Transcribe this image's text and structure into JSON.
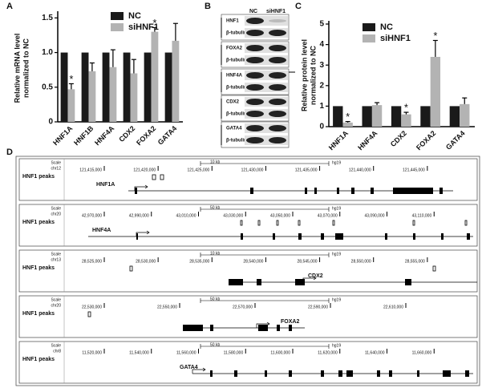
{
  "chart_data": [
    {
      "type": "bar",
      "ylabel": [
        "Relative mRNA level",
        "normalized to NC"
      ],
      "categories": [
        "HNF1A",
        "HNF1B",
        "HNF4A",
        "CDX2",
        "FOXA2",
        "GATA4"
      ],
      "series": [
        {
          "name": "NC",
          "color": "#1a1a1a",
          "values": [
            1,
            1,
            1,
            1,
            1,
            1
          ]
        },
        {
          "name": "siHNF1",
          "color": "#b3b3b3",
          "values": [
            0.47,
            0.73,
            0.79,
            0.7,
            1.3,
            1.17
          ],
          "errors": [
            0.08,
            0.12,
            0.25,
            0.2,
            0.06,
            0.25
          ]
        }
      ],
      "significance": [
        "*",
        null,
        null,
        null,
        "*",
        null
      ],
      "ylim": [
        0,
        1.55
      ],
      "yticks": [
        0,
        0.5,
        {
          "value": 1,
          "label": "1.0"
        },
        1.5
      ]
    },
    {
      "type": "bar",
      "ylabel": [
        "Relative protein level",
        "normalized to NC"
      ],
      "categories": [
        "HNF1A",
        "HNF4A",
        "CDX2",
        "FOXA2",
        "GATA4"
      ],
      "series": [
        {
          "name": "NC",
          "color": "#1a1a1a",
          "values": [
            1,
            1,
            1,
            1,
            1
          ]
        },
        {
          "name": "siHNF1",
          "color": "#b3b3b3",
          "values": [
            0.2,
            1.05,
            0.6,
            3.4,
            1.1
          ],
          "errors": [
            0.05,
            0.12,
            0.1,
            0.8,
            0.3
          ]
        }
      ],
      "significance": [
        "*",
        null,
        "*",
        "*",
        null
      ],
      "ylim": [
        0,
        5
      ],
      "yticks": [
        0,
        1,
        2,
        3,
        4,
        5
      ]
    }
  ],
  "panel_labels": [
    "A",
    "B",
    "C",
    "D"
  ],
  "blot": {
    "lanes": [
      "NC",
      "siHNF1"
    ],
    "rows": [
      "HNF1",
      "β-tubulin",
      "FOXA2",
      "β-tubulin",
      "HNF4A",
      "β-tubulin",
      "CDX2",
      "β-tubulin",
      "GATA4",
      "β-tubulin"
    ]
  },
  "tracks": [
    {
      "scale": "Scale",
      "chrom": "chr12",
      "span": "10 kb",
      "assembly": "hg19",
      "peaks": "HNF1 peaks",
      "gene": "HNF1A",
      "coords": [
        "121,415,000",
        "121,420,000",
        "121,425,000",
        "121,430,000",
        "121,435,000",
        "121,440,000",
        "121,445,000"
      ]
    },
    {
      "scale": "Scale",
      "chrom": "chr20",
      "span": "50 kb",
      "assembly": "hg19",
      "peaks": "HNF1 peaks",
      "gene": "HNF4A",
      "coords": [
        "42,970,000",
        "42,990,000",
        "43,010,000",
        "43,030,000",
        "43,050,000",
        "43,070,000",
        "43,090,000",
        "43,110,000"
      ]
    },
    {
      "scale": "Scale",
      "chrom": "chr13",
      "span": "10 kb",
      "assembly": "hg19",
      "peaks": "HNF1 peaks",
      "gene": "CDX2",
      "coords": [
        "28,525,000",
        "28,530,000",
        "28,535,000",
        "28,540,000",
        "28,545,000",
        "28,550,000",
        "28,555,000"
      ]
    },
    {
      "scale": "Scale",
      "chrom": "chr20",
      "span": "50 kb",
      "assembly": "hg19",
      "peaks": "HNF1 peaks",
      "gene": "FOXA2",
      "coords": [
        "22,530,000",
        "22,550,000",
        "22,570,000",
        "22,590,000",
        "22,610,000"
      ]
    },
    {
      "scale": "Scale",
      "chrom": "chr8",
      "span": "50 kb",
      "assembly": "hg19",
      "peaks": "HNF1 peaks",
      "gene": "GATA4",
      "coords": [
        "11,520,000",
        "11,540,000",
        "11,560,000",
        "11,580,000",
        "11,600,000",
        "11,620,000",
        "11,640,000",
        "11,660,000"
      ]
    }
  ]
}
